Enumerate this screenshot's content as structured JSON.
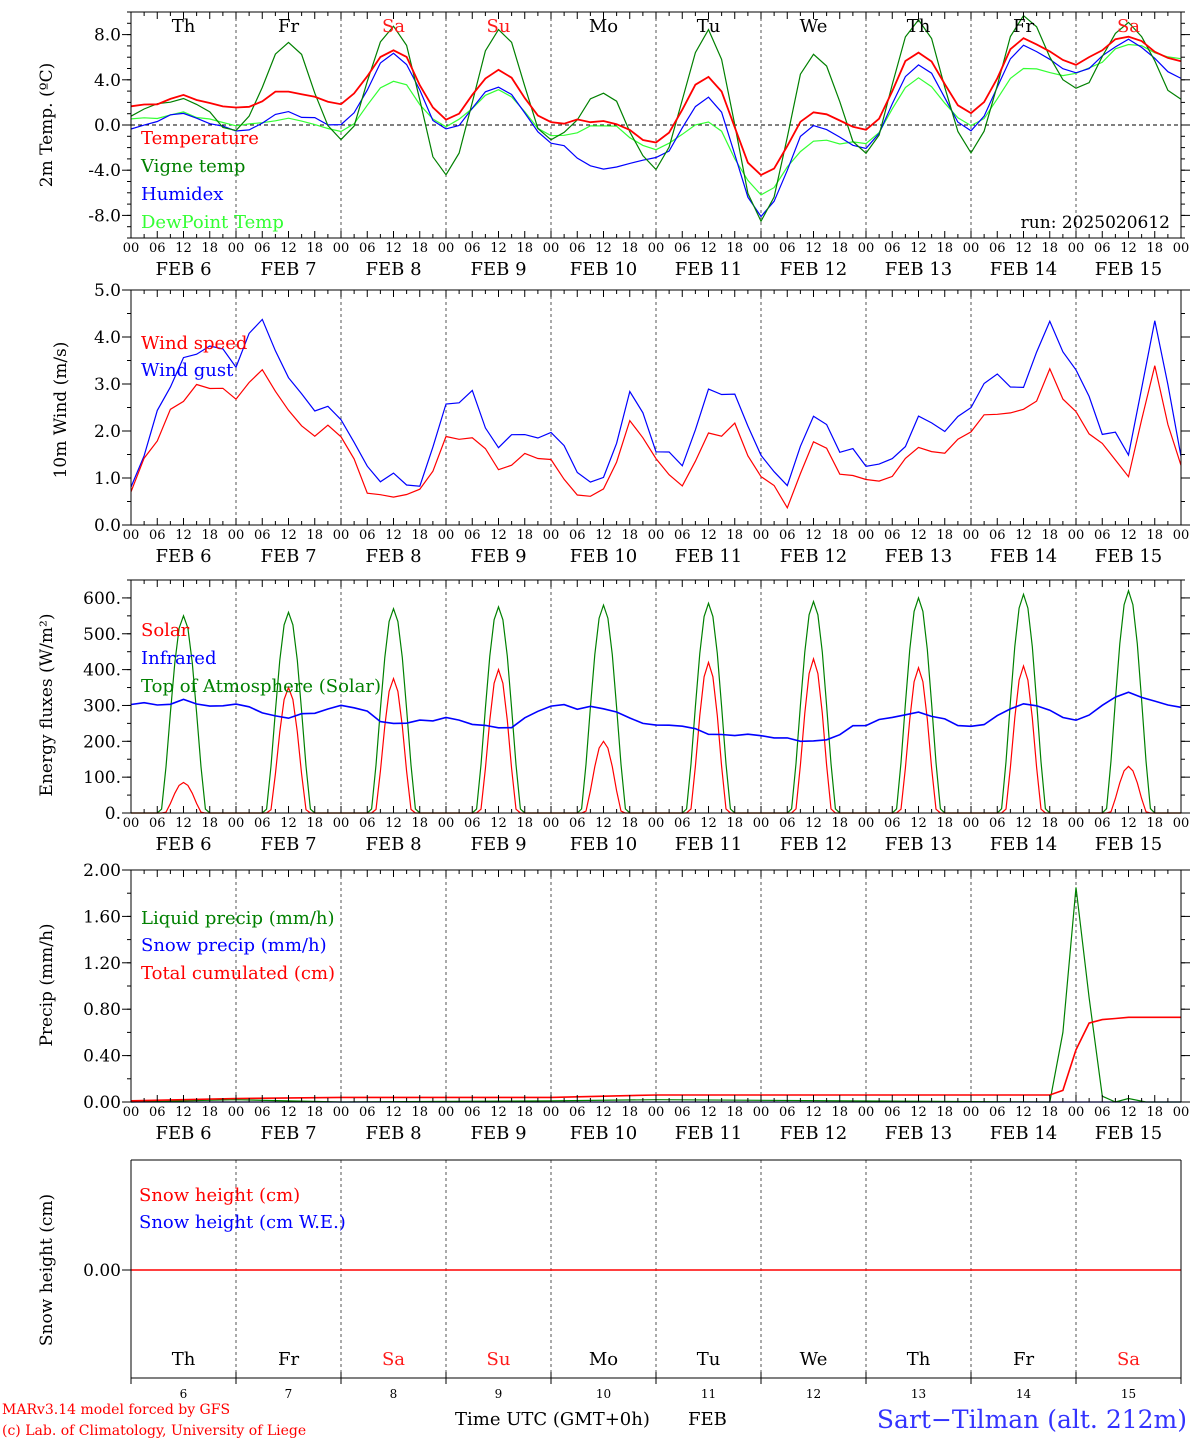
{
  "days_of_week": [
    "Th",
    "Fr",
    "Sa",
    "Su",
    "Mo",
    "Tu",
    "We",
    "Th",
    "Fr",
    "Sa"
  ],
  "weekend_color": "#ff1a1a",
  "weekday_color": "#000000",
  "date_labels": [
    "FEB 6",
    "FEB 7",
    "FEB 8",
    "FEB 9",
    "FEB 10",
    "FEB 11",
    "FEB 12",
    "FEB 13",
    "FEB 14",
    "FEB 15"
  ],
  "hour_labels": [
    "00",
    "06",
    "12",
    "18"
  ],
  "day_numbers": [
    "6",
    "7",
    "8",
    "9",
    "10",
    "11",
    "12",
    "13",
    "14",
    "15"
  ],
  "footer": {
    "credit_line1": "MARv3.14 model forced by GFS",
    "credit_line2": "(c) Lab. of Climatology, University of Liege",
    "xlabel": "Time UTC (GMT+0h)",
    "month": "FEB",
    "station": "Sart−Tilman (alt. 212m)"
  },
  "chart_data": [
    {
      "type": "line",
      "ylabel": "2m Temp. (ºC)",
      "ylim": [
        -10,
        10
      ],
      "y_ticks": [
        "8.0",
        "4.0",
        "0.0",
        "-4.0",
        "-8.0"
      ],
      "run_label": "run: 2025020612",
      "reference_line": 0,
      "x": [
        0,
        12,
        24,
        36,
        48,
        60,
        72,
        84,
        96,
        108,
        120,
        132,
        144,
        156,
        168,
        180,
        192,
        204,
        216,
        228,
        240
      ],
      "x_unit": "hours since FEB 6 00 UTC",
      "series": [
        {
          "name": "Temperature",
          "color": "#ff0000",
          "values": [
            1.5,
            2.5,
            1.5,
            3.0,
            2.0,
            6.8,
            0.5,
            4.8,
            0.3,
            0.3,
            -1.5,
            4.3,
            -4.5,
            1.0,
            -0.5,
            6.5,
            1.0,
            7.5,
            5.5,
            7.8,
            5.5
          ]
        },
        {
          "name": "Vigne temp",
          "color": "#008000",
          "values": [
            1.0,
            2.5,
            -0.5,
            7.5,
            -1.5,
            9.0,
            -4.5,
            8.5,
            -1.5,
            3.0,
            -4.0,
            8.5,
            -8.5,
            6.5,
            -2.5,
            9.5,
            -2.5,
            9.5,
            3.0,
            9.0,
            2.0
          ]
        },
        {
          "name": "Humidex",
          "color": "#0000ff",
          "values": [
            -0.3,
            1.0,
            -0.5,
            1.0,
            0.0,
            6.5,
            -0.5,
            3.5,
            -1.5,
            -4.0,
            -3.0,
            2.5,
            -8.0,
            0.0,
            -2.0,
            5.5,
            -0.5,
            7.0,
            4.5,
            7.5,
            4.3
          ]
        },
        {
          "name": "DewPoint Temp",
          "color": "#33ff33",
          "values": [
            0.5,
            1.0,
            0.0,
            0.5,
            -0.5,
            4.0,
            0.0,
            3.0,
            -1.0,
            0.0,
            -2.0,
            0.3,
            -6.0,
            -1.5,
            -1.5,
            4.0,
            0.0,
            5.0,
            4.5,
            7.0,
            6.0
          ]
        }
      ]
    },
    {
      "type": "line",
      "ylabel": "10m Wind (m/s)",
      "ylim": [
        0,
        5
      ],
      "y_ticks": [
        "5.0",
        "4.0",
        "3.0",
        "2.0",
        "1.0",
        "0.0"
      ],
      "x": [
        0,
        6,
        12,
        18,
        24,
        30,
        36,
        42,
        48,
        54,
        60,
        66,
        72,
        78,
        84,
        90,
        96,
        102,
        108,
        114,
        120,
        126,
        132,
        138,
        144,
        150,
        156,
        162,
        168,
        174,
        180,
        186,
        192,
        198,
        204,
        210,
        216,
        222,
        228,
        234,
        240
      ],
      "x_unit": "hours since FEB 6 00 UTC",
      "series": [
        {
          "name": "Wind speed",
          "color": "#ff0000",
          "values": [
            0.7,
            1.8,
            2.8,
            2.9,
            2.6,
            3.4,
            2.4,
            2.0,
            1.9,
            0.8,
            0.7,
            0.6,
            1.9,
            2.0,
            1.3,
            1.4,
            1.5,
            0.7,
            0.7,
            2.1,
            1.3,
            0.9,
            2.0,
            2.0,
            1.2,
            0.5,
            1.9,
            1.2,
            1.0,
            1.0,
            1.8,
            1.5,
            1.9,
            2.5,
            2.3,
            3.2,
            2.4,
            1.6,
            1.1,
            3.3,
            1.2
          ]
        },
        {
          "name": "Wind gust",
          "color": "#0000ff",
          "values": [
            0.9,
            2.3,
            3.6,
            3.7,
            3.5,
            4.5,
            3.1,
            2.5,
            2.3,
            1.1,
            1.0,
            0.9,
            2.7,
            2.7,
            1.7,
            1.9,
            2.1,
            1.0,
            1.0,
            2.8,
            1.7,
            1.3,
            2.8,
            2.8,
            1.5,
            0.7,
            2.4,
            1.7,
            1.3,
            1.3,
            2.3,
            2.0,
            2.5,
            3.3,
            2.9,
            4.3,
            3.3,
            2.1,
            1.5,
            4.3,
            1.6
          ]
        }
      ]
    },
    {
      "type": "line",
      "ylabel": "Energy fluxes (W/m²)",
      "ylim": [
        0,
        650
      ],
      "y_ticks": [
        "600.",
        "500.",
        "400.",
        "300.",
        "200.",
        "100.",
        "0."
      ],
      "day_peaks_top_of_atmosphere": [
        550,
        560,
        570,
        575,
        580,
        585,
        590,
        600,
        610,
        620
      ],
      "day_peaks_solar": [
        85,
        350,
        375,
        400,
        200,
        420,
        430,
        405,
        410,
        130
      ],
      "series": [
        {
          "name": "Solar",
          "color": "#ff0000"
        },
        {
          "name": "Infrared",
          "color": "#0000ff",
          "x": [
            0,
            12,
            24,
            36,
            48,
            60,
            72,
            84,
            96,
            108,
            120,
            132,
            144,
            156,
            168,
            180,
            192,
            204,
            216,
            228,
            240
          ],
          "values": [
            305,
            310,
            300,
            270,
            300,
            255,
            260,
            235,
            300,
            290,
            250,
            225,
            215,
            200,
            250,
            280,
            240,
            300,
            260,
            330,
            300
          ]
        },
        {
          "name": "Top of Atmosphere (Solar)",
          "color": "#008000"
        }
      ]
    },
    {
      "type": "line",
      "ylabel": "Precip (mm/h)",
      "ylim": [
        0,
        2
      ],
      "y_ticks": [
        "2.00",
        "1.60",
        "1.20",
        "0.80",
        "0.40",
        "0.00"
      ],
      "x": [
        0,
        24,
        48,
        96,
        120,
        210,
        213,
        216,
        219,
        222,
        225,
        228,
        232,
        240
      ],
      "x_unit": "hours since FEB 6 00 UTC",
      "series": [
        {
          "name": "Liquid precip (mm/h)",
          "color": "#008000",
          "values": [
            0.0,
            0.02,
            0.0,
            0.01,
            0.02,
            0.0,
            0.6,
            1.85,
            0.9,
            0.05,
            0.0,
            0.03,
            0.0,
            0.0
          ]
        },
        {
          "name": "Snow precip (mm/h)",
          "color": "#0000ff",
          "values": [
            0.0,
            0.0,
            0.0,
            0.0,
            0.0,
            0.0,
            0.0,
            0.0,
            0.0,
            0.0,
            0.0,
            0.0,
            0.0,
            0.0
          ]
        },
        {
          "name": "Total cumulated (cm)",
          "color": "#ff0000",
          "values": [
            0.01,
            0.03,
            0.04,
            0.04,
            0.06,
            0.06,
            0.1,
            0.45,
            0.68,
            0.71,
            0.72,
            0.73,
            0.73,
            0.73
          ]
        }
      ]
    },
    {
      "type": "line",
      "ylabel": "Snow height (cm)",
      "y_ticks": [
        "0.00"
      ],
      "series": [
        {
          "name": "Snow height (cm)",
          "color": "#ff0000",
          "values": [
            0.0
          ]
        },
        {
          "name": "Snow height (cm W.E.)",
          "color": "#0000ff",
          "values": [
            0.0
          ]
        }
      ]
    }
  ]
}
